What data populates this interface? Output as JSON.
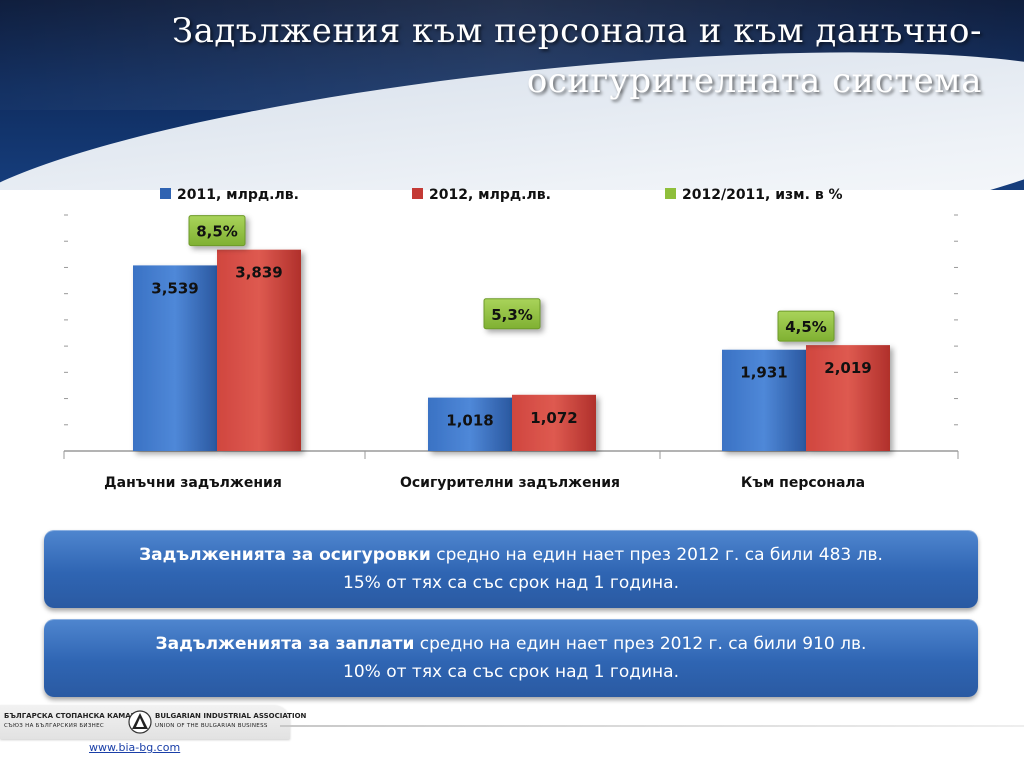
{
  "title": "Задължения към персонала и към данъчно-осигурителната система",
  "chart_data": {
    "type": "bar",
    "categories": [
      "Данъчни задължения",
      "Осигурителни задължения",
      "Към персонала"
    ],
    "series": [
      {
        "name": "2011, млрд.лв.",
        "color": "#2f63b2",
        "values": [
          3.539,
          1.018,
          1.931
        ],
        "labels": [
          "3,539",
          "1,018",
          "1,931"
        ]
      },
      {
        "name": "2012, млрд.лв.",
        "color": "#c43a35",
        "values": [
          3.839,
          1.072,
          2.019
        ],
        "labels": [
          "3,839",
          "1,072",
          "2,019"
        ]
      }
    ],
    "change_series": {
      "name": "2012/2011, изм. в %",
      "color": "#8fbf3b",
      "values": [
        8.5,
        5.3,
        4.5
      ],
      "labels": [
        "8,5%",
        "5,3%",
        "4,5%"
      ]
    },
    "ylim": [
      0,
      4.5
    ],
    "legend_position": "top",
    "grid": false
  },
  "boxes": [
    {
      "bold": "Задълженията за осигуровки",
      "text": " средно на един нает през 2012 г. са били 483 лв.",
      "line2": "15% от тях са със срок над 1 година."
    },
    {
      "bold": "Задълженията за заплати",
      "text": " средно на един нает през 2012 г. са били 910 лв.",
      "line2": "10% от тях са със срок над 1 година."
    }
  ],
  "footer": {
    "logo_left": "БЪЛГАРСКА СТОПАНСКА КАМАРА",
    "logo_left_sub": "СЪЮЗ НА БЪЛГАРСКИЯ БИЗНЕС",
    "logo_right": "BULGARIAN INDUSTRIAL ASSOCIATION",
    "logo_right_sub": "UNION OF THE BULGARIAN BUSINESS",
    "link": "www.bia-bg.com"
  }
}
